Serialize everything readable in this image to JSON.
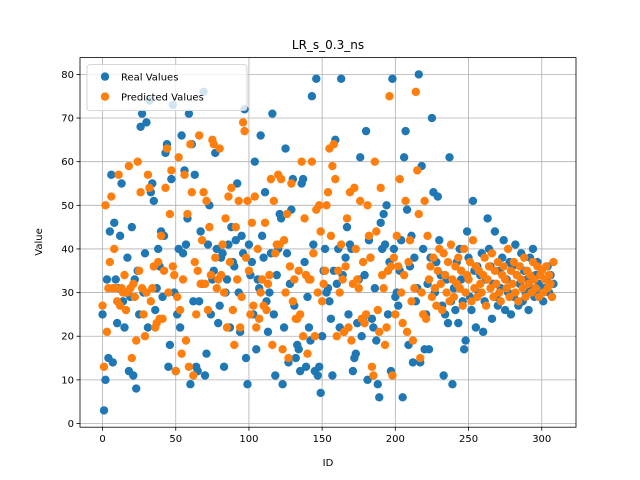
{
  "chart_data": {
    "type": "scatter",
    "title": "LR_s_0.3_ns",
    "xlabel": "ID",
    "ylabel": "Value",
    "x": [
      0,
      1,
      2,
      3,
      4,
      5,
      6,
      7,
      8,
      9,
      10,
      11,
      12,
      13,
      14,
      15,
      16,
      17,
      18,
      19,
      20,
      21,
      22,
      23,
      24,
      25,
      26,
      27,
      28,
      29,
      30,
      31,
      32,
      33,
      34,
      35,
      36,
      37,
      38,
      39,
      40,
      41,
      42,
      43,
      44,
      45,
      46,
      47,
      48,
      49,
      50,
      51,
      52,
      53,
      54,
      55,
      56,
      57,
      58,
      59,
      60,
      61,
      62,
      63,
      64,
      65,
      66,
      67,
      68,
      69,
      70,
      71,
      72,
      73,
      74,
      75,
      76,
      77,
      78,
      79,
      80,
      81,
      82,
      83,
      84,
      85,
      86,
      87,
      88,
      89,
      90,
      91,
      92,
      93,
      94,
      95,
      96,
      97,
      98,
      99,
      100,
      101,
      102,
      103,
      104,
      105,
      106,
      107,
      108,
      109,
      110,
      111,
      112,
      113,
      114,
      115,
      116,
      117,
      118,
      119,
      120,
      121,
      122,
      123,
      124,
      125,
      126,
      127,
      128,
      129,
      130,
      131,
      132,
      133,
      134,
      135,
      136,
      137,
      138,
      139,
      140,
      141,
      142,
      143,
      144,
      145,
      146,
      147,
      148,
      149,
      150,
      151,
      152,
      153,
      154,
      155,
      156,
      157,
      158,
      159,
      160,
      161,
      162,
      163,
      164,
      165,
      166,
      167,
      168,
      169,
      170,
      171,
      172,
      173,
      174,
      175,
      176,
      177,
      178,
      179,
      180,
      181,
      182,
      183,
      184,
      185,
      186,
      187,
      188,
      189,
      190,
      191,
      192,
      193,
      194,
      195,
      196,
      197,
      198,
      199,
      200,
      201,
      202,
      203,
      204,
      205,
      206,
      207,
      208,
      209,
      210,
      211,
      212,
      213,
      214,
      215,
      216,
      217,
      218,
      219,
      220,
      221,
      222,
      223,
      224,
      225,
      226,
      227,
      228,
      229,
      230,
      231,
      232,
      233,
      234,
      235,
      236,
      237,
      238,
      239,
      240,
      241,
      242,
      243,
      244,
      245,
      246,
      247,
      248,
      249,
      250,
      251,
      252,
      253,
      254,
      255,
      256,
      257,
      258,
      259,
      260,
      261,
      262,
      263,
      264,
      265,
      266,
      267,
      268,
      269,
      270,
      271,
      272,
      273,
      274,
      275,
      276,
      277,
      278,
      279,
      280,
      281,
      282,
      283,
      284,
      285,
      286,
      287,
      288,
      289,
      290,
      291,
      292,
      293,
      294,
      295,
      296,
      297,
      298,
      299,
      300,
      301,
      302,
      303,
      304,
      305,
      306,
      307,
      308
    ],
    "series": [
      {
        "name": "Real Values",
        "color": "#1f77b4",
        "values": [
          25,
          3,
          10,
          33,
          15,
          44,
          57,
          14,
          46,
          33,
          23,
          31,
          43,
          55,
          28,
          22,
          30,
          38,
          12,
          29,
          45,
          11,
          33,
          8,
          35,
          25,
          68,
          71,
          30,
          39,
          69,
          22,
          74,
          53,
          55,
          51,
          26,
          31,
          40,
          36,
          44,
          29,
          43,
          62,
          64,
          13,
          18,
          56,
          73,
          30,
          12,
          25,
          40,
          22,
          66,
          39,
          58,
          41,
          47,
          71,
          9,
          64,
          28,
          57,
          13,
          12,
          28,
          44,
          32,
          76,
          11,
          16,
          41,
          50,
          25,
          33,
          35,
          62,
          40,
          23,
          27,
          38,
          39,
          13,
          30,
          33,
          41,
          22,
          45,
          37,
          36,
          42,
          55,
          30,
          21,
          43,
          39,
          72,
          15,
          9,
          41,
          34,
          37,
          25,
          60,
          17,
          33,
          31,
          66,
          43,
          38,
          53,
          28,
          21,
          30,
          39,
          71,
          25,
          11,
          34,
          40,
          48,
          47,
          9,
          22,
          63,
          39,
          14,
          32,
          49,
          56,
          27,
          15,
          18,
          17,
          12,
          55,
          56,
          37,
          13,
          29,
          22,
          19,
          75,
          41,
          12,
          79,
          11,
          13,
          7,
          20,
          35,
          40,
          30,
          31,
          28,
          24,
          11,
          35,
          65,
          32,
          40,
          22,
          79,
          34,
          21,
          38,
          45,
          25,
          41,
          40,
          12,
          15,
          16,
          23,
          33,
          61,
          20,
          24,
          34,
          67,
          10,
          42,
          38,
          24,
          22,
          31,
          19,
          9,
          6,
          46,
          40,
          48,
          41,
          50,
          25,
          37,
          12,
          79,
          40,
          29,
          30,
          27,
          35,
          42,
          6,
          61,
          67,
          49,
          18,
          36,
          43,
          14,
          38,
          28,
          31,
          80,
          14,
          59,
          40,
          17,
          25,
          32,
          17,
          38,
          70,
          53,
          30,
          37,
          52,
          42,
          34,
          27,
          11,
          25,
          33,
          23,
          61,
          28,
          9,
          31,
          26,
          37,
          23,
          40,
          33,
          28,
          17,
          19,
          44,
          38,
          29,
          26,
          51,
          35,
          22,
          36,
          30,
          34,
          39,
          21,
          28,
          33,
          47,
          40,
          36,
          24,
          32,
          44,
          29,
          27,
          35,
          31,
          38,
          42,
          26,
          33,
          30,
          37,
          25,
          36,
          29,
          41,
          34,
          27,
          32,
          39,
          28,
          35,
          30,
          33,
          26,
          38,
          31,
          40,
          29,
          34,
          37,
          32,
          30,
          35,
          28,
          31,
          33,
          36,
          30,
          34,
          29,
          32
        ]
      },
      {
        "name": "Predicted Values",
        "color": "#ff7f0e",
        "values": [
          27,
          13,
          50,
          21,
          31,
          37,
          52,
          31,
          40,
          31,
          28,
          57,
          27,
          31,
          30,
          34,
          26,
          30,
          59,
          31,
          15,
          32,
          29,
          19,
          60,
          35,
          53,
          31,
          25,
          20,
          30,
          57,
          54,
          28,
          31,
          36,
          22,
          23,
          37,
          24,
          43,
          24,
          35,
          54,
          63,
          30,
          48,
          58,
          36,
          34,
          12,
          29,
          61,
          26,
          16,
          33,
          57,
          19,
          48,
          13,
          64,
          53,
          11,
          37,
          25,
          35,
          66,
          32,
          42,
          53,
          32,
          51,
          26,
          45,
          34,
          65,
          64,
          38,
          31,
          33,
          63,
          34,
          41,
          30,
          47,
          22,
          52,
          37,
          54,
          26,
          18,
          45,
          33,
          51,
          22,
          29,
          69,
          67,
          38,
          51,
          35,
          25,
          46,
          27,
          52,
          22,
          40,
          24,
          30,
          33,
          27,
          46,
          26,
          32,
          34,
          56,
          18,
          51,
          39,
          41,
          57,
          41,
          56,
          17,
          42,
          30,
          48,
          15,
          36,
          55,
          28,
          33,
          24,
          24,
          35,
          25,
          60,
          20,
          47,
          34,
          16,
          33,
          33,
          60,
          39,
          20,
          49,
          30,
          50,
          44,
          28,
          32,
          35,
          50,
          53,
          63,
          43,
          59,
          64,
          56,
          20,
          35,
          30,
          41,
          33,
          21,
          36,
          47,
          22,
          53,
          19,
          32,
          54,
          40,
          33,
          31,
          51,
          24,
          37,
          23,
          25,
          50,
          43,
          38,
          13,
          11,
          60,
          44,
          26,
          21,
          54,
          34,
          31,
          18,
          22,
          35,
          75,
          36,
          11,
          38,
          25,
          43,
          36,
          56,
          30,
          23,
          34,
          51,
          21,
          37,
          42,
          28,
          19,
          31,
          76,
          58,
          48,
          15,
          30,
          25,
          51,
          24,
          43,
          33,
          36,
          29,
          38,
          31,
          27,
          35,
          40,
          32,
          26,
          39,
          34,
          30,
          37,
          28,
          41,
          33,
          29,
          36,
          32,
          38,
          31,
          35,
          27,
          40,
          30,
          34,
          33,
          37,
          28,
          42,
          31,
          36,
          29,
          35,
          32,
          30,
          34,
          38,
          27,
          33,
          36,
          31,
          39,
          29,
          35,
          32,
          37,
          30,
          28,
          34,
          36,
          33,
          31,
          40,
          29,
          35,
          32,
          37,
          30,
          34,
          28,
          36,
          33,
          31,
          38,
          29,
          35,
          32,
          34,
          30,
          37,
          33,
          31,
          36,
          29,
          34,
          35,
          30,
          33,
          36,
          31,
          34,
          32,
          29,
          37
        ]
      }
    ],
    "xlim": [
      -15.4,
      323.4
    ],
    "xticks": [
      0,
      50,
      100,
      150,
      200,
      250,
      300
    ],
    "ylim": [
      -0.85,
      83.85
    ],
    "yticks": [
      0,
      10,
      20,
      30,
      40,
      50,
      60,
      70,
      80
    ],
    "grid": true,
    "legend": "upper left"
  }
}
